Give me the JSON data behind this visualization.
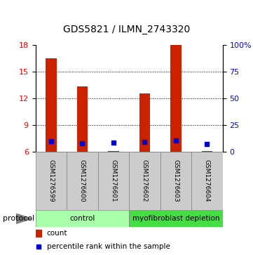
{
  "title": "GDS5821 / ILMN_2743320",
  "samples": [
    "GSM1276599",
    "GSM1276600",
    "GSM1276601",
    "GSM1276602",
    "GSM1276603",
    "GSM1276604"
  ],
  "counts": [
    16.5,
    13.3,
    6.1,
    12.5,
    18.0,
    6.1
  ],
  "percentile_ranks": [
    9.75,
    8.1,
    8.4,
    9.1,
    10.2,
    7.2
  ],
  "ylim_left": [
    6,
    18
  ],
  "ylim_right": [
    0,
    100
  ],
  "yticks_left": [
    6,
    9,
    12,
    15,
    18
  ],
  "yticks_right": [
    0,
    25,
    50,
    75,
    100
  ],
  "ytick_labels_right": [
    "0",
    "25",
    "50",
    "75",
    "100%"
  ],
  "bar_color": "#cc2200",
  "dot_color": "#0000cc",
  "bar_width": 0.35,
  "groups": [
    {
      "label": "control",
      "indices": [
        0,
        1,
        2
      ],
      "color": "#aaffaa"
    },
    {
      "label": "myofibroblast depletion",
      "indices": [
        3,
        4,
        5
      ],
      "color": "#44dd44"
    }
  ],
  "legend_count_label": "count",
  "legend_pct_label": "percentile rank within the sample",
  "protocol_label": "protocol",
  "sample_box_color": "#cccccc",
  "plot_bg": "#ffffff",
  "figsize": [
    3.61,
    3.63
  ],
  "dpi": 100
}
